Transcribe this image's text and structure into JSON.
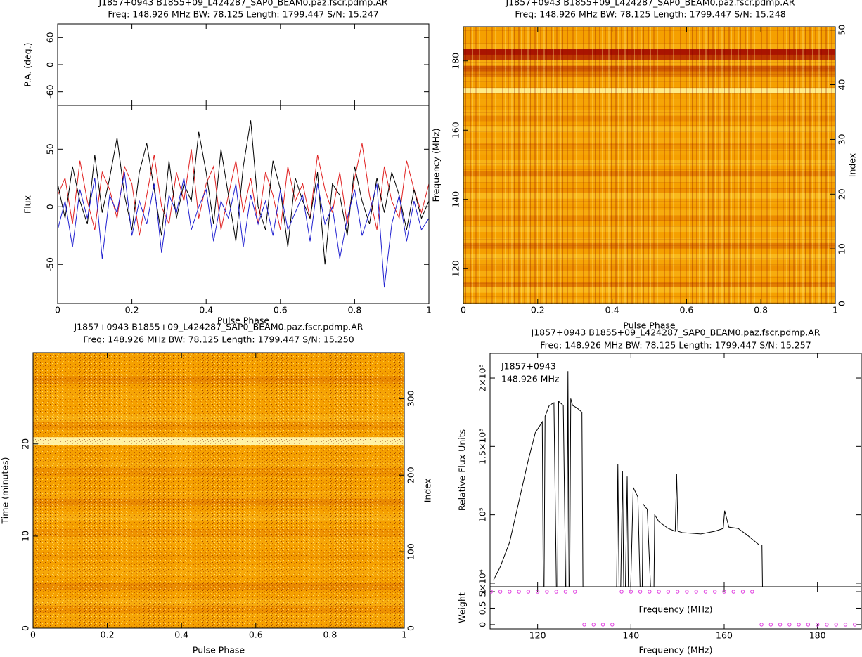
{
  "chart_data": [
    {
      "type": "line",
      "title": "J1857+0943 B1855+09_L424287_SAP0_BEAM0.paz.fscr.pdmp.AR",
      "subtitle": "Freq: 148.926 MHz BW: 78.125 Length: 1799.447 S/N: 15.247",
      "pa_ylabel": "P.A. (deg.)",
      "pa_ylim": [
        -90,
        90
      ],
      "pa_yticks": [
        -60,
        0,
        60
      ],
      "ylabel": "Flux",
      "ylim": [
        -84,
        88
      ],
      "yticks": [
        -50,
        0,
        50
      ],
      "xlabel": "Pulse Phase",
      "xlim": [
        0,
        1
      ],
      "xticks": [
        0,
        0.2,
        0.4,
        0.6,
        0.8,
        1
      ],
      "x": [
        0,
        0.02,
        0.04,
        0.06,
        0.08,
        0.1,
        0.12,
        0.14,
        0.16,
        0.18,
        0.2,
        0.22,
        0.24,
        0.26,
        0.28,
        0.3,
        0.32,
        0.34,
        0.36,
        0.38,
        0.4,
        0.42,
        0.44,
        0.46,
        0.48,
        0.5,
        0.52,
        0.54,
        0.56,
        0.58,
        0.6,
        0.62,
        0.64,
        0.66,
        0.68,
        0.7,
        0.72,
        0.74,
        0.76,
        0.78,
        0.8,
        0.82,
        0.84,
        0.86,
        0.88,
        0.9,
        0.92,
        0.94,
        0.96,
        0.98,
        1
      ],
      "series": [
        {
          "color": "#e02020",
          "values": [
            10,
            25,
            -15,
            40,
            5,
            -20,
            30,
            15,
            -10,
            35,
            20,
            -25,
            10,
            45,
            0,
            -15,
            30,
            5,
            50,
            -10,
            20,
            35,
            -20,
            10,
            40,
            -5,
            25,
            -15,
            30,
            10,
            -20,
            35,
            5,
            20,
            -10,
            45,
            15,
            -5,
            30,
            -15,
            25,
            55,
            10,
            -20,
            35,
            5,
            -10,
            40,
            15,
            -5,
            20
          ]
        },
        {
          "color": "#000000",
          "values": [
            20,
            -10,
            35,
            5,
            -15,
            45,
            -5,
            25,
            60,
            10,
            -20,
            30,
            55,
            15,
            -25,
            40,
            -10,
            20,
            5,
            65,
            30,
            -15,
            50,
            10,
            -30,
            35,
            75,
            0,
            -20,
            40,
            15,
            -35,
            25,
            5,
            -10,
            30,
            -50,
            20,
            10,
            -25,
            35,
            5,
            -15,
            25,
            -5,
            30,
            10,
            -20,
            15,
            -10,
            5
          ]
        },
        {
          "color": "#2020d0",
          "values": [
            -20,
            5,
            -35,
            15,
            -10,
            25,
            -45,
            10,
            -5,
            30,
            -25,
            5,
            -15,
            20,
            -40,
            10,
            -5,
            25,
            -20,
            0,
            15,
            -30,
            5,
            -10,
            20,
            -35,
            10,
            -15,
            5,
            -25,
            15,
            -20,
            -5,
            10,
            -30,
            20,
            -15,
            0,
            -45,
            -10,
            15,
            -25,
            -5,
            20,
            -70,
            -15,
            10,
            -30,
            5,
            -20,
            -10
          ]
        }
      ]
    },
    {
      "type": "heatmap",
      "title": "J1857+0943 B1855+09_L424287_SAP0_BEAM0.paz.fscr.pdmp.AR",
      "subtitle": "Freq: 148.926 MHz BW: 78.125 Length: 1799.447 S/N: 15.248",
      "xlabel": "Pulse Phase",
      "xlim": [
        0,
        1
      ],
      "xticks": [
        0,
        0.2,
        0.4,
        0.6,
        0.8,
        1
      ],
      "ylabel": "Frequency (MHz)",
      "ylim": [
        109.9,
        189.9
      ],
      "yticks": [
        120,
        140,
        160,
        180
      ],
      "y2label": "Index",
      "y2lim": [
        0,
        50.6
      ],
      "y2ticks": [
        0,
        10,
        20,
        30,
        40,
        50
      ],
      "values": [
        0.55,
        0.5,
        0.6,
        0.45,
        0.5,
        0.55,
        0.48,
        0.52,
        0.6,
        0.5,
        0.45,
        0.55,
        0.5,
        0.58,
        0.5,
        0.47,
        0.55,
        0.5,
        0.52,
        0.6,
        0.48,
        0.5,
        0.55,
        0.45,
        0.5,
        0.58,
        0.5,
        0.52,
        0.48,
        0.55,
        0.5,
        0.6,
        0.5,
        0.47,
        0.55,
        0.5,
        0.52,
        0.5,
        0.85,
        0.5,
        0.52,
        0.45,
        0.4,
        0.55,
        0.35,
        0.3,
        0.55,
        0.5,
        0.5,
        0.5
      ]
    },
    {
      "type": "heatmap",
      "title": "J1857+0943 B1855+09_L424287_SAP0_BEAM0.paz.fscr.pdmp.AR",
      "subtitle": "Freq: 148.926 MHz BW: 78.125 Length: 1799.447 S/N: 15.250",
      "xlabel": "Pulse Phase",
      "xlim": [
        0,
        1
      ],
      "xticks": [
        0,
        0.2,
        0.4,
        0.6,
        0.8,
        1
      ],
      "ylabel": "Time (minutes)",
      "ylim": [
        0,
        29.9
      ],
      "yticks": [
        0,
        10,
        20
      ],
      "y2label": "Index",
      "y2lim": [
        0,
        360
      ],
      "y2ticks": [
        0,
        100,
        200,
        300
      ],
      "values": [
        0.5,
        0.52,
        0.48,
        0.55,
        0.5,
        0.47,
        0.5,
        0.53,
        0.5,
        0.49,
        0.5,
        0.52,
        0.48,
        0.5,
        0.55,
        0.5,
        0.47,
        0.52,
        0.5,
        0.5,
        0.48,
        0.53,
        0.5,
        0.5,
        0.9,
        0.5,
        0.48,
        0.55,
        0.5,
        0.5,
        0.52,
        0.5,
        0.47,
        0.5,
        0.5,
        0.5
      ]
    },
    {
      "type": "line",
      "title": "J1857+0943 B1855+09_L424287_SAP0_BEAM0.paz.fscr.pdmp.AR",
      "subtitle": "Freq: 148.926 MHz BW: 78.125 Length: 1799.447 S/N: 15.257",
      "annotations": [
        "J1857+0943",
        "148.926 MHz"
      ],
      "ylabel": "Relative Flux Units",
      "ylim": [
        47400,
        218000
      ],
      "yticks": [
        {
          "value": 50000,
          "label": "5×10⁴"
        },
        {
          "value": 100000,
          "label": "10⁵"
        },
        {
          "value": 150000,
          "label": "1.5×10⁵"
        },
        {
          "value": 200000,
          "label": "2×10⁵"
        }
      ],
      "xlabel": "Frequency (MHz)",
      "xlim": [
        109.8,
        189.4
      ],
      "xticks": [
        120,
        140,
        160,
        180
      ],
      "x": [
        110.5,
        112,
        114,
        116,
        118,
        119.5,
        121,
        121.3,
        121.6,
        122.5,
        123.5,
        124.2,
        124.5,
        125.5,
        126.2,
        126.5,
        126.8,
        127.1,
        127.5,
        128.5,
        129.5,
        129.8,
        136.8,
        137.2,
        137.6,
        138.2,
        138.6,
        139.2,
        139.6,
        140.5,
        141.5,
        142.3,
        142.6,
        143.5,
        144.8,
        145.1,
        146,
        148,
        149.5,
        149.8,
        150.1,
        151,
        155,
        158,
        159.8,
        160.1,
        161,
        163,
        165,
        167.5,
        168.1,
        168.4
      ],
      "series": [
        {
          "color": "#000000",
          "values": [
            52000,
            62000,
            80000,
            110000,
            140000,
            160000,
            168000,
            0,
            172000,
            180000,
            182000,
            0,
            183000,
            180000,
            0,
            205000,
            0,
            185000,
            180000,
            178000,
            175000,
            0,
            0,
            137000,
            0,
            132000,
            0,
            128000,
            0,
            120000,
            113000,
            0,
            108000,
            104000,
            0,
            100000,
            95000,
            90000,
            88000,
            130000,
            88000,
            87000,
            86000,
            88000,
            90000,
            103000,
            91000,
            90000,
            85000,
            78000,
            78000,
            0
          ]
        }
      ],
      "weights": {
        "ylabel": "Weight",
        "xlabel": "Frequency (MHz)",
        "ylim": [
          -0.13,
          1.15
        ],
        "yticks": [
          0,
          0.5,
          1
        ],
        "color": "#e040e0",
        "x": [
          110,
          112,
          114,
          116,
          118,
          120,
          122,
          124,
          126,
          128,
          130,
          132,
          134,
          136,
          138,
          140,
          142,
          144,
          146,
          148,
          150,
          152,
          154,
          156,
          158,
          160,
          162,
          164,
          166,
          168,
          170,
          172,
          174,
          176,
          178,
          180,
          182,
          184,
          186,
          188
        ],
        "values": [
          1,
          1,
          1,
          1,
          1,
          1,
          1,
          1,
          1,
          1,
          0,
          0,
          0,
          0,
          1,
          1,
          1,
          1,
          1,
          1,
          1,
          1,
          1,
          1,
          1,
          1,
          1,
          1,
          1,
          0,
          0,
          0,
          0,
          0,
          0,
          0,
          0,
          0,
          0,
          0
        ]
      }
    }
  ]
}
